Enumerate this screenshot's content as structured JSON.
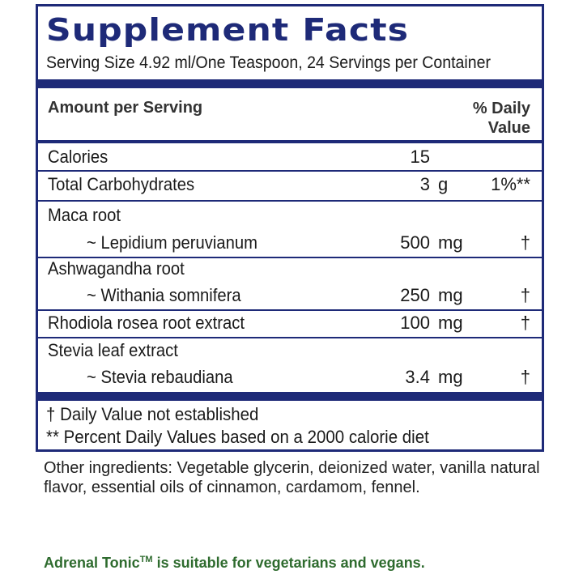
{
  "panel": {
    "title": "Supplement Facts",
    "serving": "Serving Size 4.92 ml/One Teaspoon, 24 Servings per Container",
    "header_left": "Amount per Serving",
    "header_right_1": "% Daily",
    "header_right_2": "Value",
    "rows": [
      {
        "name": "Calories",
        "amount": "15",
        "unit": "",
        "dv": ""
      },
      {
        "name": "Total Carbohydrates",
        "amount": "3",
        "unit": "g",
        "dv": "1%**"
      },
      {
        "name": "Maca root",
        "sub": "~ Lepidium peruvianum",
        "amount": "500",
        "unit": "mg",
        "dv": "†"
      },
      {
        "name": "Ashwagandha root",
        "sub": "~ Withania somnifera",
        "amount": "250",
        "unit": "mg",
        "dv": "†"
      },
      {
        "name": "Rhodiola rosea root extract",
        "amount": "100",
        "unit": "mg",
        "dv": "†"
      },
      {
        "name": "Stevia leaf extract",
        "sub": "~ Stevia rebaudiana",
        "amount": "3.4",
        "unit": "mg",
        "dv": "†"
      }
    ],
    "footnote_1": "† Daily Value not established",
    "footnote_2": "** Percent Daily Values based on a 2000 calorie diet"
  },
  "other_ingredients": "Other ingredients: Vegetable glycerin, deionized water, vanilla natural flavor, essential oils of cinnamon, cardamom, fennel.",
  "suitable": {
    "brand": "Adrenal Tonic",
    "tm": "TM",
    "text": " is suitable for vegetarians and vegans."
  },
  "colors": {
    "panel_blue": "#1e2a78",
    "green_text": "#2e6b2e"
  }
}
